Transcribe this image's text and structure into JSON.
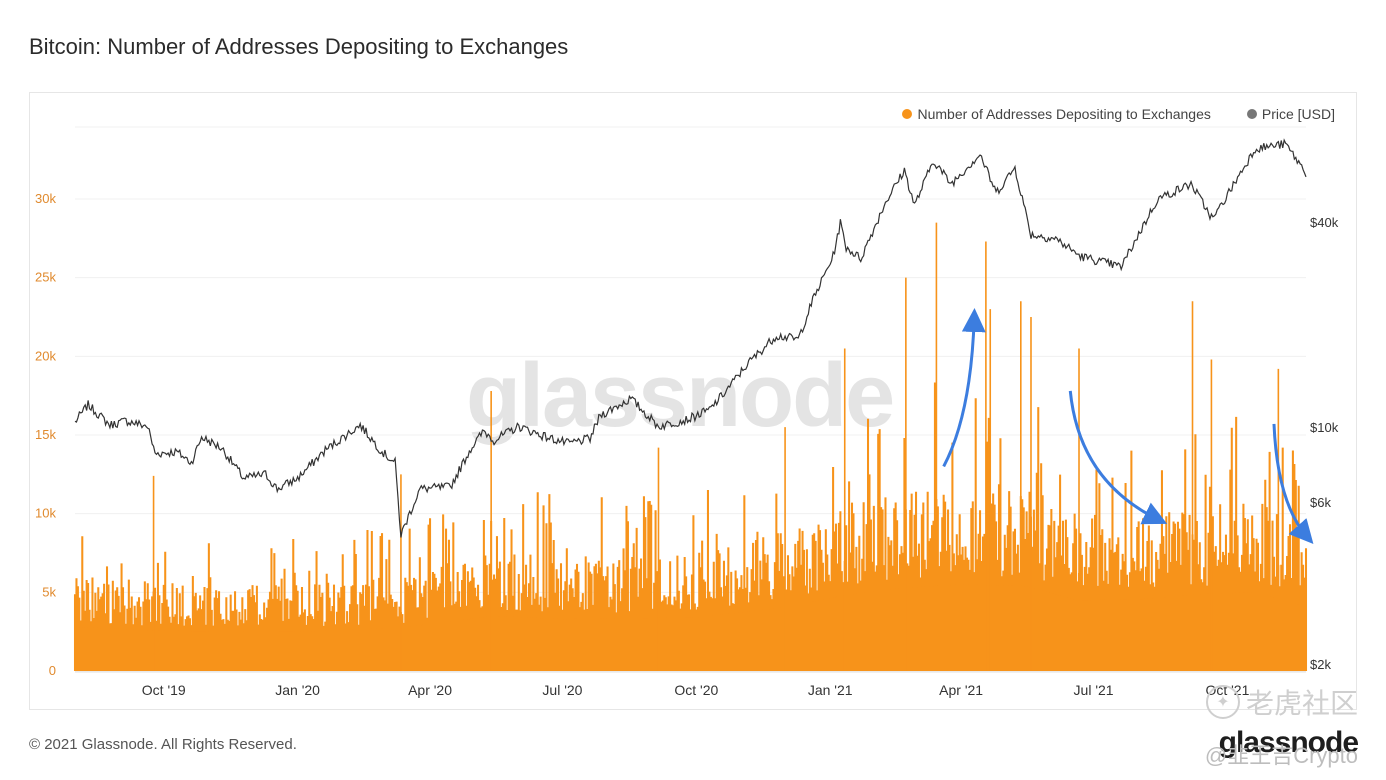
{
  "page": {
    "title": "Bitcoin: Number of Addresses Depositing to Exchanges",
    "copyright": "© 2021 Glassnode. All Rights Reserved.",
    "brand": "glassnode",
    "watermark": "glassnode",
    "sns_mark": "老虎社区",
    "sns_handle": "@韭王吉Crypto"
  },
  "colors": {
    "addresses": "#f7931a",
    "price": "#333333",
    "arrow": "#3c7ddf",
    "left_axis_text": "#e08a2e",
    "right_axis_text": "#333333"
  },
  "legend": [
    {
      "label": "Number of Addresses Depositing to Exchanges",
      "color": "#f7931a"
    },
    {
      "label": "Price [USD]",
      "color": "#777777"
    }
  ],
  "chart_data": {
    "type": "area",
    "title": "Bitcoin: Number of Addresses Depositing to Exchanges",
    "x_range": [
      "2019-08-01",
      "2021-11-24"
    ],
    "x_ticks": [
      {
        "date": "2019-10-01",
        "label": "Oct '19"
      },
      {
        "date": "2020-01-01",
        "label": "Jan '20"
      },
      {
        "date": "2020-04-01",
        "label": "Apr '20"
      },
      {
        "date": "2020-07-01",
        "label": "Jul '20"
      },
      {
        "date": "2020-10-01",
        "label": "Oct '20"
      },
      {
        "date": "2021-01-01",
        "label": "Jan '21"
      },
      {
        "date": "2021-04-01",
        "label": "Apr '21"
      },
      {
        "date": "2021-07-01",
        "label": "Jul '21"
      },
      {
        "date": "2021-10-01",
        "label": "Oct '21"
      }
    ],
    "y_left": {
      "range": [
        0,
        30000
      ],
      "ticks": [
        0,
        5000,
        10000,
        15000,
        20000,
        25000,
        30000
      ],
      "tick_labels": [
        "0",
        "5k",
        "10k",
        "15k",
        "20k",
        "25k",
        "30k"
      ]
    },
    "y_right": {
      "scale": "log",
      "ticks": [
        2000,
        6000,
        10000,
        40000
      ],
      "tick_labels": [
        "$2k",
        "$6k",
        "$10k",
        "$40k"
      ]
    },
    "grid": true,
    "legend_position": "top-right",
    "series": [
      {
        "name": "Number of Addresses Depositing to Exchanges",
        "axis": "left",
        "kind": "daily-bars",
        "baseline_points": [
          [
            "2019-08-01",
            5600
          ],
          [
            "2019-10-01",
            5100
          ],
          [
            "2020-01-01",
            5000
          ],
          [
            "2020-03-12",
            5500
          ],
          [
            "2020-05-15",
            7000
          ],
          [
            "2020-07-01",
            6600
          ],
          [
            "2020-10-01",
            6800
          ],
          [
            "2020-12-01",
            8100
          ],
          [
            "2021-01-10",
            9600
          ],
          [
            "2021-02-15",
            10500
          ],
          [
            "2021-04-01",
            11000
          ],
          [
            "2021-05-15",
            10800
          ],
          [
            "2021-06-20",
            9000
          ],
          [
            "2021-08-01",
            9100
          ],
          [
            "2021-09-15",
            9800
          ],
          [
            "2021-10-20",
            10000
          ],
          [
            "2021-11-24",
            8200
          ]
        ],
        "peaks": [
          [
            "2019-09-24",
            12400
          ],
          [
            "2020-03-12",
            12500
          ],
          [
            "2020-05-13",
            17800
          ],
          [
            "2020-09-05",
            14200
          ],
          [
            "2020-12-01",
            15500
          ],
          [
            "2021-01-11",
            20500
          ],
          [
            "2021-02-22",
            25000
          ],
          [
            "2021-03-15",
            28500
          ],
          [
            "2021-04-18",
            27300
          ],
          [
            "2021-04-21",
            23000
          ],
          [
            "2021-05-12",
            23500
          ],
          [
            "2021-05-19",
            22500
          ],
          [
            "2021-06-21",
            20500
          ],
          [
            "2021-09-07",
            23500
          ],
          [
            "2021-09-20",
            19800
          ],
          [
            "2021-11-05",
            19200
          ]
        ]
      },
      {
        "name": "Price [USD]",
        "axis": "right",
        "kind": "line",
        "points": [
          [
            "2019-08-01",
            10500
          ],
          [
            "2019-08-10",
            11800
          ],
          [
            "2019-08-25",
            10300
          ],
          [
            "2019-09-05",
            10600
          ],
          [
            "2019-09-20",
            10200
          ],
          [
            "2019-09-25",
            8500
          ],
          [
            "2019-10-10",
            8600
          ],
          [
            "2019-10-20",
            8000
          ],
          [
            "2019-10-27",
            9500
          ],
          [
            "2019-11-10",
            8800
          ],
          [
            "2019-11-25",
            7200
          ],
          [
            "2019-12-10",
            7400
          ],
          [
            "2019-12-18",
            6700
          ],
          [
            "2020-01-01",
            7200
          ],
          [
            "2020-01-20",
            8700
          ],
          [
            "2020-02-13",
            10300
          ],
          [
            "2020-02-28",
            8600
          ],
          [
            "2020-03-08",
            8000
          ],
          [
            "2020-03-12",
            4900
          ],
          [
            "2020-03-15",
            5300
          ],
          [
            "2020-03-25",
            6700
          ],
          [
            "2020-04-15",
            6800
          ],
          [
            "2020-04-29",
            8800
          ],
          [
            "2020-05-08",
            9900
          ],
          [
            "2020-05-15",
            9300
          ],
          [
            "2020-06-01",
            10200
          ],
          [
            "2020-06-20",
            9500
          ],
          [
            "2020-07-05",
            9100
          ],
          [
            "2020-07-20",
            9400
          ],
          [
            "2020-07-27",
            11000
          ],
          [
            "2020-08-17",
            12300
          ],
          [
            "2020-09-05",
            10200
          ],
          [
            "2020-09-25",
            10700
          ],
          [
            "2020-10-10",
            11400
          ],
          [
            "2020-10-21",
            12900
          ],
          [
            "2020-11-05",
            15500
          ],
          [
            "2020-11-25",
            18800
          ],
          [
            "2020-12-10",
            18300
          ],
          [
            "2020-12-20",
            23800
          ],
          [
            "2021-01-03",
            32000
          ],
          [
            "2021-01-08",
            40000
          ],
          [
            "2021-01-12",
            34000
          ],
          [
            "2021-01-22",
            31500
          ],
          [
            "2021-02-08",
            46000
          ],
          [
            "2021-02-21",
            57000
          ],
          [
            "2021-02-28",
            45000
          ],
          [
            "2021-03-13",
            61000
          ],
          [
            "2021-03-25",
            52000
          ],
          [
            "2021-04-14",
            63500
          ],
          [
            "2021-04-25",
            49000
          ],
          [
            "2021-05-08",
            58000
          ],
          [
            "2021-05-19",
            37000
          ],
          [
            "2021-06-05",
            36000
          ],
          [
            "2021-06-22",
            32000
          ],
          [
            "2021-07-20",
            29800
          ],
          [
            "2021-08-14",
            47000
          ],
          [
            "2021-09-06",
            52000
          ],
          [
            "2021-09-21",
            41000
          ],
          [
            "2021-10-20",
            66000
          ],
          [
            "2021-11-10",
            68000
          ],
          [
            "2021-11-24",
            56000
          ]
        ]
      }
    ],
    "annotations": [
      {
        "kind": "arrow",
        "direction": "up",
        "from": [
          "2021-03-20",
          13000
        ],
        "to": [
          "2021-04-10",
          22500
        ]
      },
      {
        "kind": "arrow",
        "direction": "down",
        "from": [
          "2021-06-15",
          17800
        ],
        "to": [
          "2021-08-15",
          9600
        ]
      },
      {
        "kind": "arrow",
        "direction": "down",
        "from": [
          "2021-11-02",
          15700
        ],
        "to": [
          "2021-11-25",
          8500
        ]
      }
    ]
  }
}
